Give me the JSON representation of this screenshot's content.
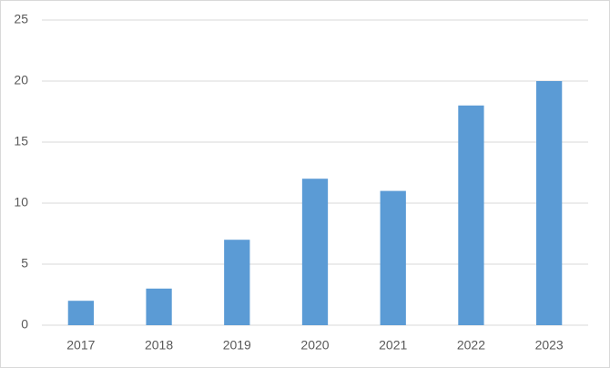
{
  "chart_data": {
    "type": "bar",
    "categories": [
      "2017",
      "2018",
      "2019",
      "2020",
      "2021",
      "2022",
      "2023"
    ],
    "values": [
      2,
      3,
      7,
      12,
      11,
      18,
      20
    ],
    "color": "#5b9bd5",
    "ylim": [
      0,
      25
    ],
    "yticks": [
      0,
      5,
      10,
      15,
      20,
      25
    ],
    "grid": true
  }
}
